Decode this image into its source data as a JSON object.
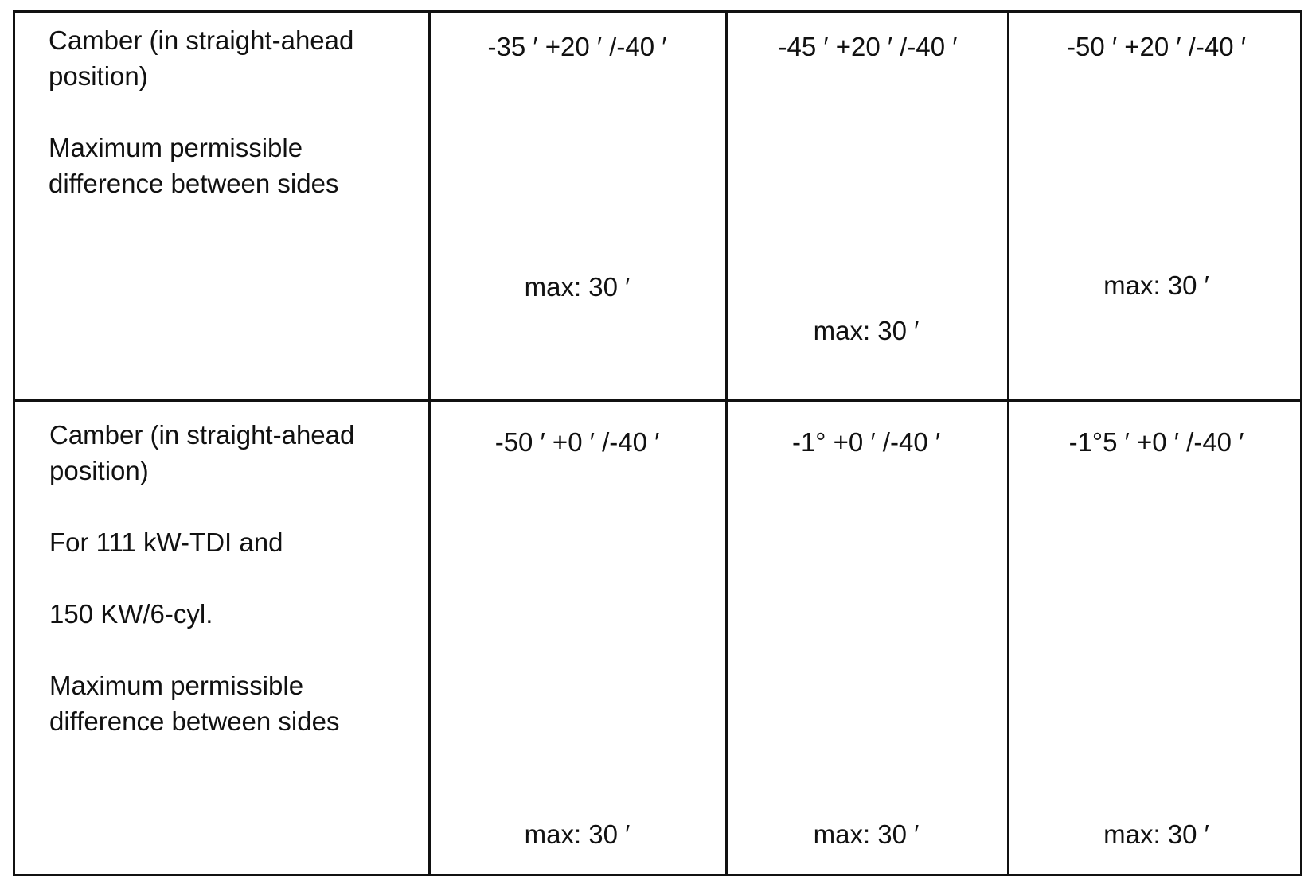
{
  "table": {
    "rows": [
      {
        "label": [
          "Camber (in straight-ahead position)",
          "Maximum permissible difference between sides"
        ],
        "cells": [
          {
            "spec": "-35 ′ +20 ′ /-40 ′",
            "max": "max: 30 ′"
          },
          {
            "spec": "-45 ′ +20 ′ /-40 ′",
            "max": "max: 30 ′"
          },
          {
            "spec": "-50 ′ +20 ′ /-40 ′",
            "max": "max: 30 ′"
          }
        ]
      },
      {
        "label": [
          "Camber (in straight-ahead position)",
          "For 111 kW-TDI and",
          "150 KW/6-cyl.",
          "Maximum permissible difference between sides"
        ],
        "cells": [
          {
            "spec": "-50 ′ +0 ′ /-40 ′",
            "max": "max: 30 ′"
          },
          {
            "spec": "-1° +0 ′ /-40 ′",
            "max": "max: 30 ′"
          },
          {
            "spec": "-1°5 ′ +0 ′ /-40 ′",
            "max": "max: 30 ′"
          }
        ]
      }
    ]
  }
}
